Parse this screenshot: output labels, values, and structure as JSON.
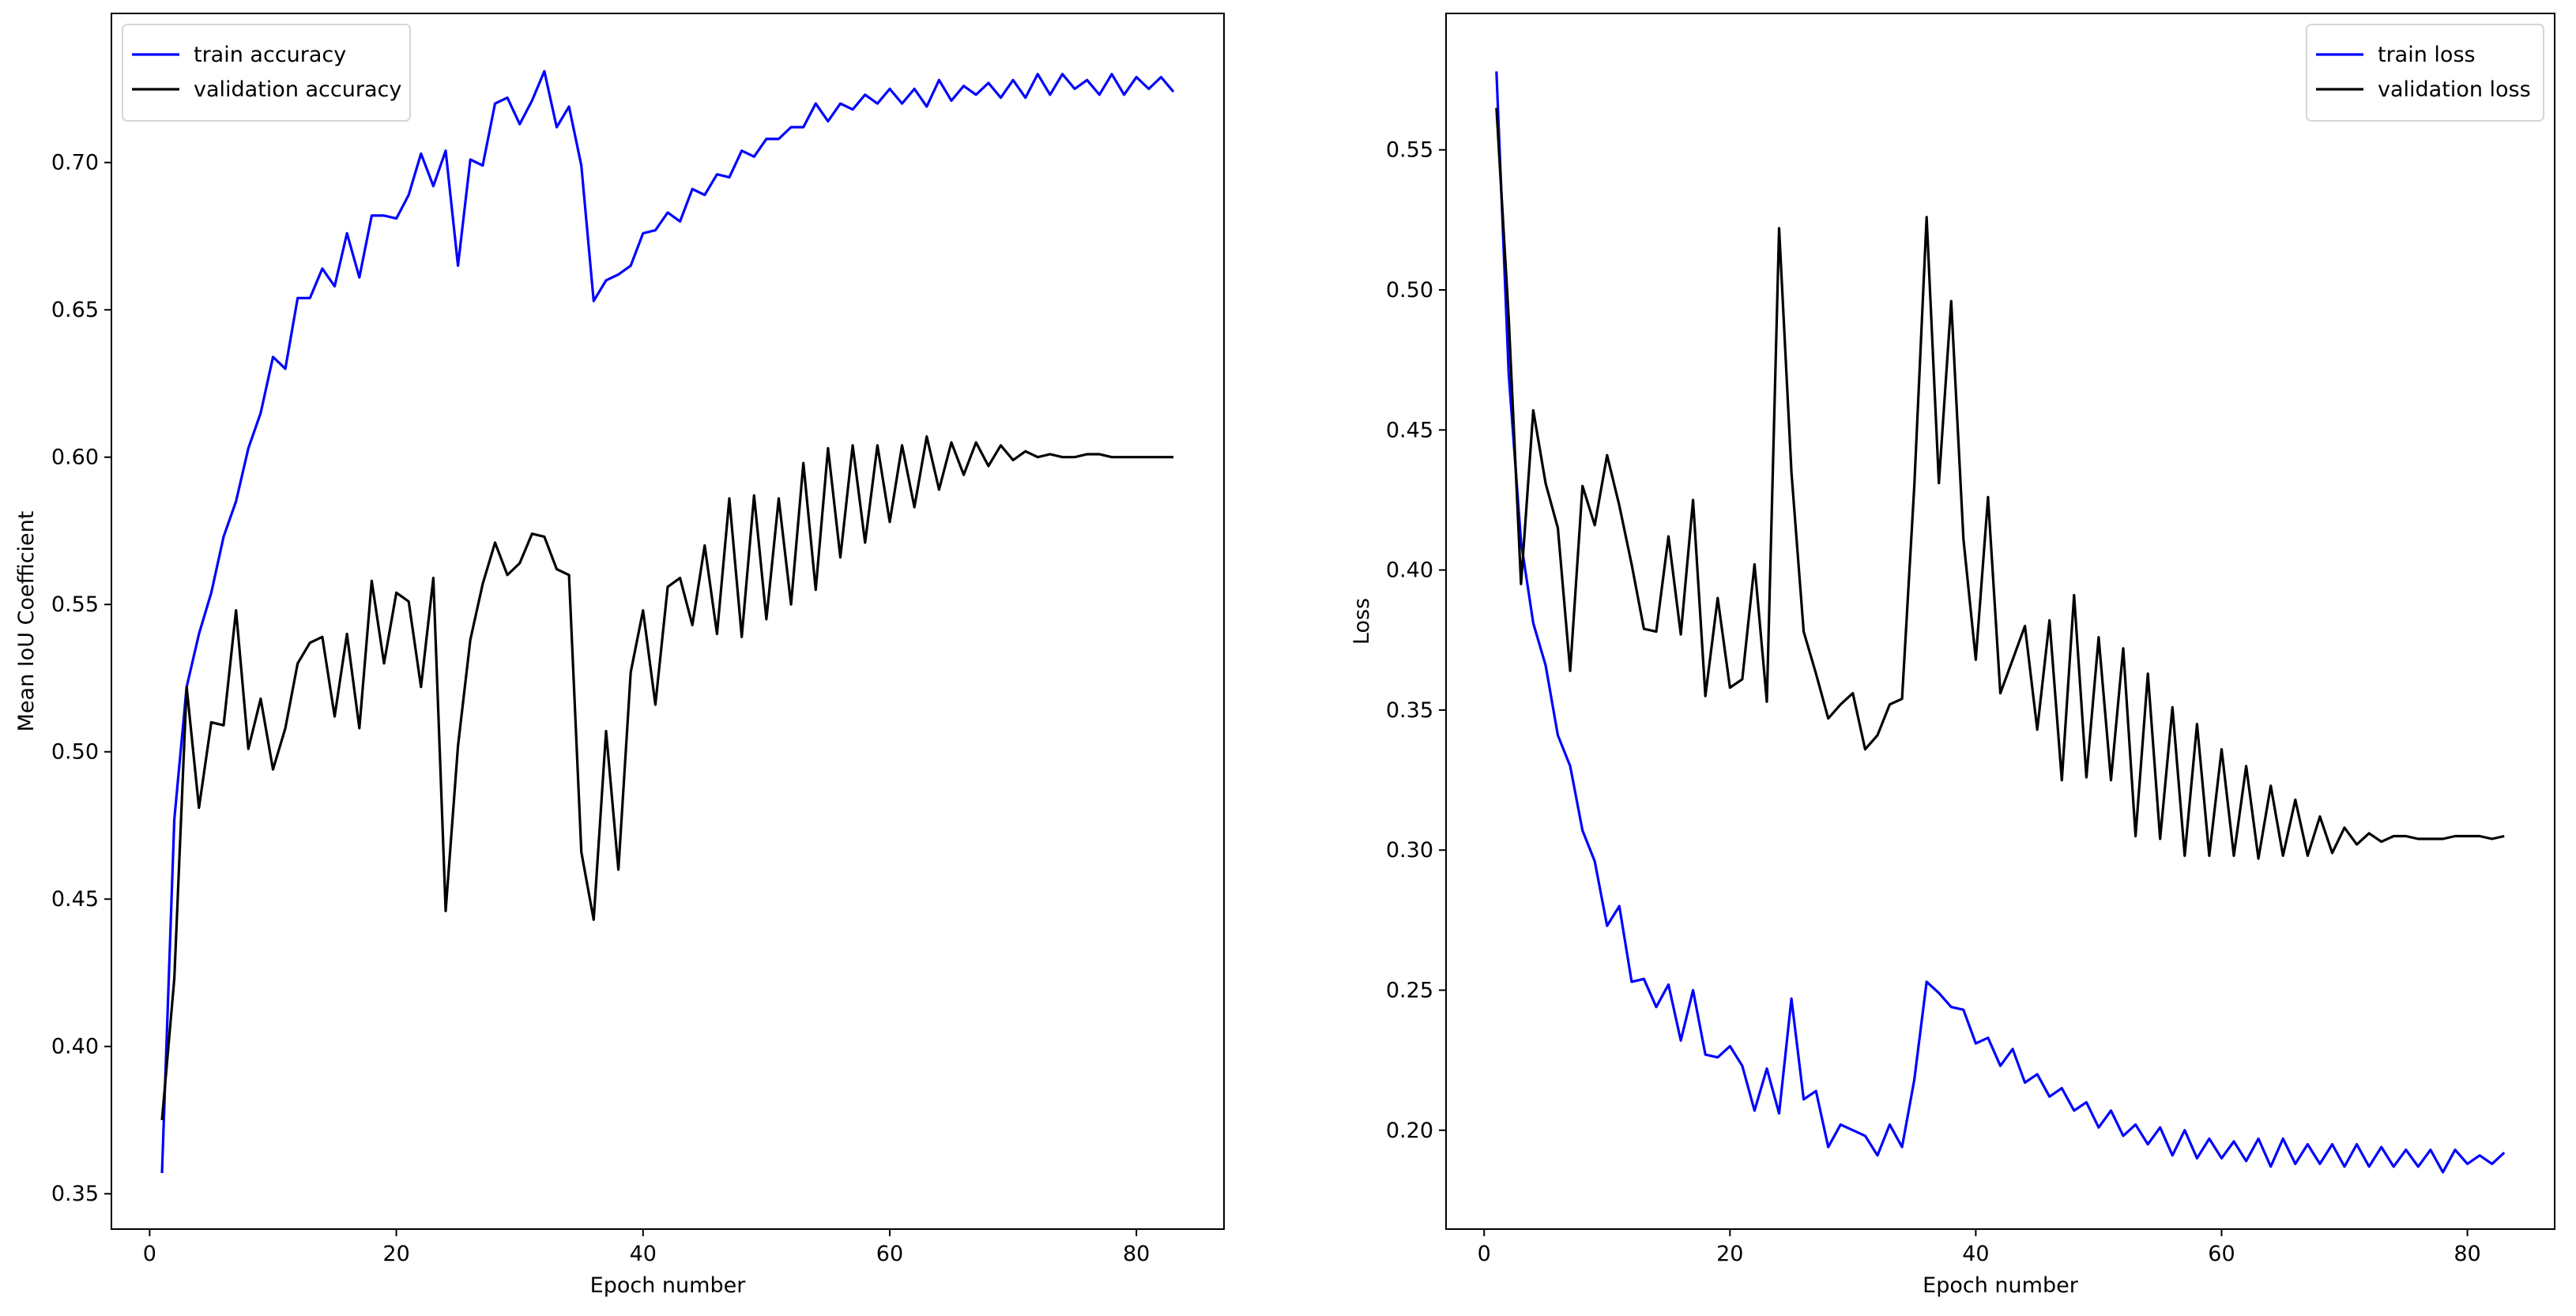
{
  "chart_data": [
    {
      "type": "line",
      "title": "",
      "xlabel": "Epoch number",
      "ylabel": "Mean IoU Coefficient",
      "xlim": [
        -3.1,
        87.1
      ],
      "ylim": [
        0.338,
        0.7506
      ],
      "xticks": [
        0,
        20,
        40,
        60,
        80
      ],
      "xtick_labels": [
        "0",
        "20",
        "40",
        "60",
        "80"
      ],
      "yticks": [
        0.35,
        0.4,
        0.45,
        0.5,
        0.55,
        0.6,
        0.65,
        0.7
      ],
      "ytick_labels": [
        "0.35",
        "0.40",
        "0.45",
        "0.50",
        "0.55",
        "0.60",
        "0.65",
        "0.70"
      ],
      "legend_position": "top-left",
      "grid": false,
      "x_start": 1,
      "series": [
        {
          "name": "train accuracy",
          "color": "#0000ff",
          "values": [
            0.357,
            0.477,
            0.522,
            0.54,
            0.554,
            0.573,
            0.585,
            0.603,
            0.615,
            0.634,
            0.63,
            0.654,
            0.654,
            0.664,
            0.658,
            0.676,
            0.661,
            0.682,
            0.682,
            0.681,
            0.689,
            0.703,
            0.692,
            0.704,
            0.665,
            0.701,
            0.699,
            0.72,
            0.722,
            0.713,
            0.721,
            0.731,
            0.712,
            0.719,
            0.699,
            0.653,
            0.66,
            0.662,
            0.665,
            0.676,
            0.677,
            0.683,
            0.68,
            0.691,
            0.689,
            0.696,
            0.695,
            0.704,
            0.702,
            0.708,
            0.708,
            0.712,
            0.712,
            0.72,
            0.714,
            0.72,
            0.718,
            0.723,
            0.72,
            0.725,
            0.72,
            0.725,
            0.719,
            0.728,
            0.721,
            0.726,
            0.723,
            0.727,
            0.722,
            0.728,
            0.722,
            0.73,
            0.723,
            0.73,
            0.725,
            0.728,
            0.723,
            0.73,
            0.723,
            0.729,
            0.725,
            0.729,
            0.724
          ]
        },
        {
          "name": "validation accuracy",
          "color": "#000000",
          "values": [
            0.375,
            0.423,
            0.522,
            0.481,
            0.51,
            0.509,
            0.548,
            0.501,
            0.518,
            0.494,
            0.508,
            0.53,
            0.537,
            0.539,
            0.512,
            0.54,
            0.508,
            0.558,
            0.53,
            0.554,
            0.551,
            0.522,
            0.559,
            0.446,
            0.502,
            0.538,
            0.557,
            0.571,
            0.56,
            0.564,
            0.574,
            0.573,
            0.562,
            0.56,
            0.466,
            0.443,
            0.507,
            0.46,
            0.527,
            0.548,
            0.516,
            0.556,
            0.559,
            0.543,
            0.57,
            0.54,
            0.586,
            0.539,
            0.587,
            0.545,
            0.586,
            0.55,
            0.598,
            0.555,
            0.603,
            0.566,
            0.604,
            0.571,
            0.604,
            0.578,
            0.604,
            0.583,
            0.607,
            0.589,
            0.605,
            0.594,
            0.605,
            0.597,
            0.604,
            0.599,
            0.602,
            0.6,
            0.601,
            0.6,
            0.6,
            0.601,
            0.601,
            0.6,
            0.6,
            0.6,
            0.6,
            0.6,
            0.6
          ]
        }
      ]
    },
    {
      "type": "line",
      "title": "",
      "xlabel": "Epoch number",
      "ylabel": "Loss",
      "xlim": [
        -3.1,
        87.1
      ],
      "ylim": [
        0.1647,
        0.5987
      ],
      "xticks": [
        0,
        20,
        40,
        60,
        80
      ],
      "xtick_labels": [
        "0",
        "20",
        "40",
        "60",
        "80"
      ],
      "yticks": [
        0.2,
        0.25,
        0.3,
        0.35,
        0.4,
        0.45,
        0.5,
        0.55
      ],
      "ytick_labels": [
        "0.20",
        "0.25",
        "0.30",
        "0.35",
        "0.40",
        "0.45",
        "0.50",
        "0.55"
      ],
      "legend_position": "top-right",
      "grid": false,
      "x_start": 1,
      "series": [
        {
          "name": "train loss",
          "color": "#0000ff",
          "values": [
            0.578,
            0.47,
            0.41,
            0.381,
            0.366,
            0.341,
            0.33,
            0.307,
            0.296,
            0.273,
            0.28,
            0.253,
            0.254,
            0.244,
            0.252,
            0.232,
            0.25,
            0.227,
            0.226,
            0.23,
            0.223,
            0.207,
            0.222,
            0.206,
            0.247,
            0.211,
            0.214,
            0.194,
            0.202,
            0.2,
            0.198,
            0.191,
            0.202,
            0.194,
            0.218,
            0.253,
            0.249,
            0.244,
            0.243,
            0.231,
            0.233,
            0.223,
            0.229,
            0.217,
            0.22,
            0.212,
            0.215,
            0.207,
            0.21,
            0.201,
            0.207,
            0.198,
            0.202,
            0.195,
            0.201,
            0.191,
            0.2,
            0.19,
            0.197,
            0.19,
            0.196,
            0.189,
            0.197,
            0.187,
            0.197,
            0.188,
            0.195,
            0.188,
            0.195,
            0.187,
            0.195,
            0.187,
            0.194,
            0.187,
            0.193,
            0.187,
            0.193,
            0.185,
            0.193,
            0.188,
            0.191,
            0.188,
            0.192
          ]
        },
        {
          "name": "validation loss",
          "color": "#000000",
          "values": [
            0.565,
            0.49,
            0.395,
            0.457,
            0.431,
            0.415,
            0.364,
            0.43,
            0.416,
            0.441,
            0.423,
            0.402,
            0.379,
            0.378,
            0.412,
            0.377,
            0.425,
            0.355,
            0.39,
            0.358,
            0.361,
            0.402,
            0.353,
            0.522,
            0.435,
            0.378,
            0.363,
            0.347,
            0.352,
            0.356,
            0.336,
            0.341,
            0.352,
            0.354,
            0.43,
            0.526,
            0.431,
            0.496,
            0.411,
            0.368,
            0.426,
            0.356,
            0.368,
            0.38,
            0.343,
            0.382,
            0.325,
            0.391,
            0.326,
            0.376,
            0.325,
            0.372,
            0.305,
            0.363,
            0.304,
            0.351,
            0.298,
            0.345,
            0.298,
            0.336,
            0.298,
            0.33,
            0.297,
            0.323,
            0.298,
            0.318,
            0.298,
            0.312,
            0.299,
            0.308,
            0.302,
            0.306,
            0.303,
            0.305,
            0.305,
            0.304,
            0.304,
            0.304,
            0.305,
            0.305,
            0.305,
            0.304,
            0.305
          ]
        }
      ]
    }
  ]
}
